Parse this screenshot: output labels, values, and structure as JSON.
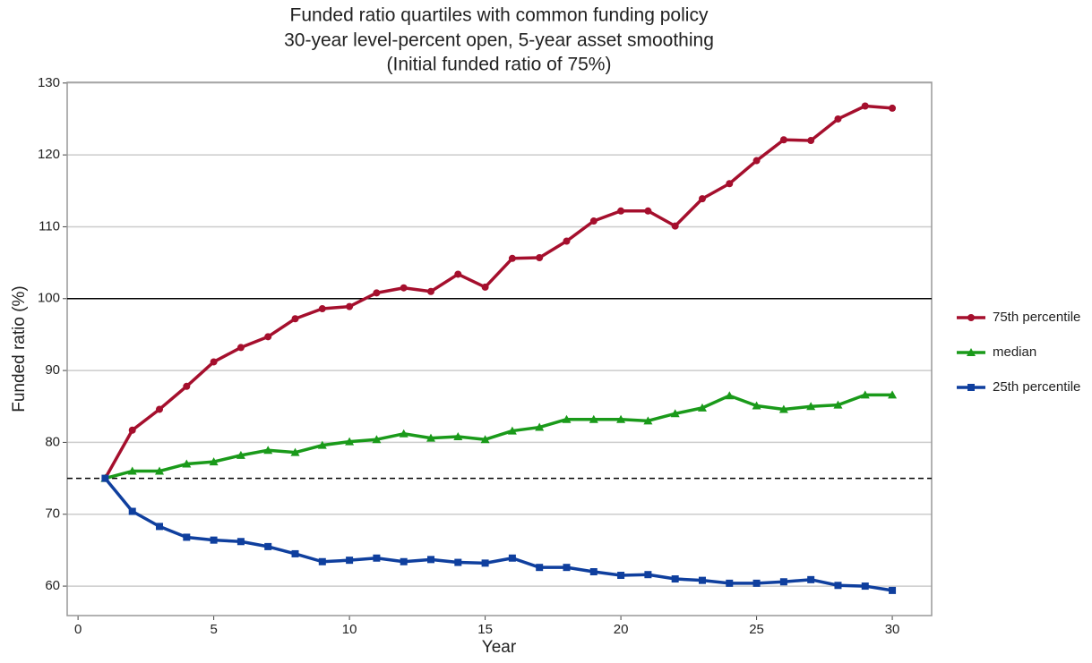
{
  "chart_data": {
    "type": "line",
    "title": [
      "Funded ratio quartiles with common funding policy",
      "30-year level-percent open, 5-year asset smoothing",
      "(Initial funded ratio of 75%)"
    ],
    "x_label": "Year",
    "y_label": "Funded ratio (%)",
    "x": [
      1,
      2,
      3,
      4,
      5,
      6,
      7,
      8,
      9,
      10,
      11,
      12,
      13,
      14,
      15,
      16,
      17,
      18,
      19,
      20,
      21,
      22,
      23,
      24,
      25,
      26,
      27,
      28,
      29,
      30
    ],
    "series": [
      {
        "name": "75th percentile",
        "color": "#a50f2d",
        "marker": "circle",
        "values": [
          75,
          81.7,
          84.6,
          87.8,
          91.2,
          93.2,
          94.7,
          97.2,
          98.6,
          98.9,
          100.8,
          101.5,
          101.0,
          103.4,
          101.6,
          105.6,
          105.7,
          108.0,
          110.8,
          112.2,
          112.2,
          110.1,
          113.9,
          116.0,
          119.2,
          122.1,
          122.0,
          125.0,
          126.8,
          126.5
        ]
      },
      {
        "name": "median",
        "color": "#1a9a1a",
        "marker": "triangle",
        "values": [
          75,
          76.0,
          76.0,
          77.0,
          77.3,
          78.2,
          78.9,
          78.6,
          79.6,
          80.1,
          80.4,
          81.2,
          80.6,
          80.8,
          80.4,
          81.6,
          82.1,
          83.2,
          83.2,
          83.2,
          83.0,
          84.0,
          84.8,
          86.5,
          85.1,
          84.6,
          85.0,
          85.2,
          86.6,
          86.6
        ]
      },
      {
        "name": "25th percentile",
        "color": "#0f3f9e",
        "marker": "square",
        "values": [
          75,
          70.4,
          68.3,
          66.8,
          66.4,
          66.2,
          65.5,
          64.5,
          63.4,
          63.6,
          63.9,
          63.4,
          63.7,
          63.3,
          63.2,
          63.9,
          62.6,
          62.6,
          62.0,
          61.5,
          61.6,
          61.0,
          60.8,
          60.4,
          60.4,
          60.6,
          60.9,
          60.1,
          60.0,
          59.4
        ]
      }
    ],
    "reference_lines": [
      {
        "value": 100,
        "style": "solid"
      },
      {
        "value": 75,
        "style": "dashed"
      }
    ],
    "xlim": [
      -0.4,
      31.45
    ],
    "ylim": [
      55.9,
      130.1
    ],
    "xticks": [
      0,
      5,
      10,
      15,
      20,
      25,
      30
    ],
    "yticks": [
      60,
      70,
      80,
      90,
      100,
      110,
      120,
      130
    ],
    "grid": true,
    "legend": "right"
  }
}
